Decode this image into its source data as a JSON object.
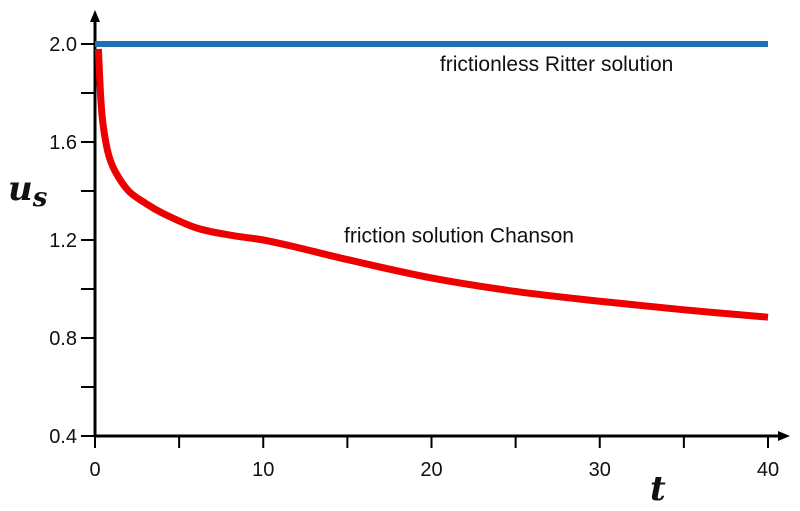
{
  "chart_data": {
    "type": "line",
    "title": "",
    "xlabel": "t",
    "ylabel": "u_s",
    "ylabel_main": "u",
    "ylabel_sub": "s",
    "xlim": [
      0,
      40
    ],
    "ylim": [
      0.4,
      2.0
    ],
    "grid": false,
    "legend": "none (inline annotations)",
    "x_ticks": [
      0,
      10,
      20,
      30,
      40
    ],
    "x_tick_labels": [
      "0",
      "10",
      "20",
      "30",
      "40"
    ],
    "x_minor_ticks": [
      5,
      15,
      25,
      35
    ],
    "y_ticks": [
      2.0,
      1.6,
      1.2,
      0.8,
      0.4
    ],
    "y_tick_labels": [
      "2.0",
      "1.6",
      "1.2",
      "0.8",
      "0.4"
    ],
    "y_minor_ticks": [
      1.8,
      1.4,
      1.0,
      0.6
    ],
    "series": [
      {
        "name": "frictionless Ritter solution",
        "color": "#1f6fb5",
        "x": [
          0,
          40
        ],
        "values": [
          2.0,
          2.0
        ]
      },
      {
        "name": "friction solution Chanson",
        "color": "#ee0000",
        "x": [
          0.2,
          0.35,
          0.5,
          0.8,
          1.2,
          2,
          3,
          4,
          6,
          8,
          10,
          12,
          15,
          20,
          25,
          30,
          35,
          40
        ],
        "values": [
          1.98,
          1.77,
          1.66,
          1.55,
          1.48,
          1.4,
          1.35,
          1.31,
          1.25,
          1.22,
          1.2,
          1.17,
          1.12,
          1.045,
          0.99,
          0.95,
          0.915,
          0.885
        ]
      }
    ],
    "annotations": [
      {
        "text": "frictionless Ritter solution",
        "x": 20.5,
        "y": 1.89
      },
      {
        "text": "friction solution Chanson",
        "x": 14.8,
        "y": 1.19
      }
    ]
  }
}
